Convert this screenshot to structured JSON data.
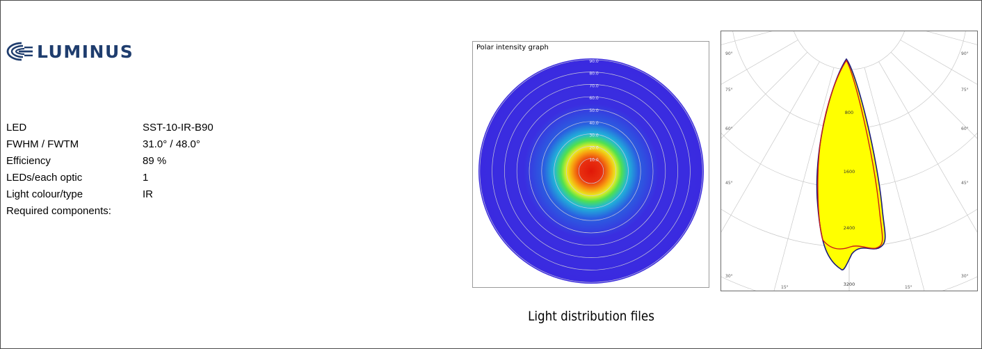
{
  "brand": {
    "name": "LUMINUS",
    "color": "#1f3d6e"
  },
  "specs": [
    {
      "label": "LED",
      "value": "SST-10-IR-B90"
    },
    {
      "label": "FWHM / FWTM",
      "value": "31.0° / 48.0°"
    },
    {
      "label": "Efficiency",
      "value": "89 %"
    },
    {
      "label": "LEDs/each optic",
      "value": "1"
    },
    {
      "label": "Light colour/type",
      "value": "IR"
    },
    {
      "label": "Required components:",
      "value": ""
    }
  ],
  "polar_graph": {
    "title": "Polar intensity graph",
    "ring_labels": [
      "10.0",
      "20.0",
      "30.0",
      "40.0",
      "50.0",
      "60.0",
      "70.0",
      "80.0",
      "90.0"
    ],
    "colors": {
      "background": "#3a2ee0",
      "hot": "#e01808"
    }
  },
  "chart_data": {
    "type": "polar",
    "title": "",
    "angle_labels_left": [
      "90°",
      "75°",
      "60°",
      "45°",
      "30°",
      "15°"
    ],
    "angle_labels_right": [
      "90°",
      "75°",
      "60°",
      "45°",
      "30°",
      "15°"
    ],
    "intensity_labels": [
      "800",
      "1600",
      "2400",
      "3200"
    ],
    "fill_color": "#ffff00",
    "series": [
      {
        "color": "#1a1a7a"
      },
      {
        "color": "#cc1a1a"
      }
    ]
  },
  "caption": "Light distribution files"
}
